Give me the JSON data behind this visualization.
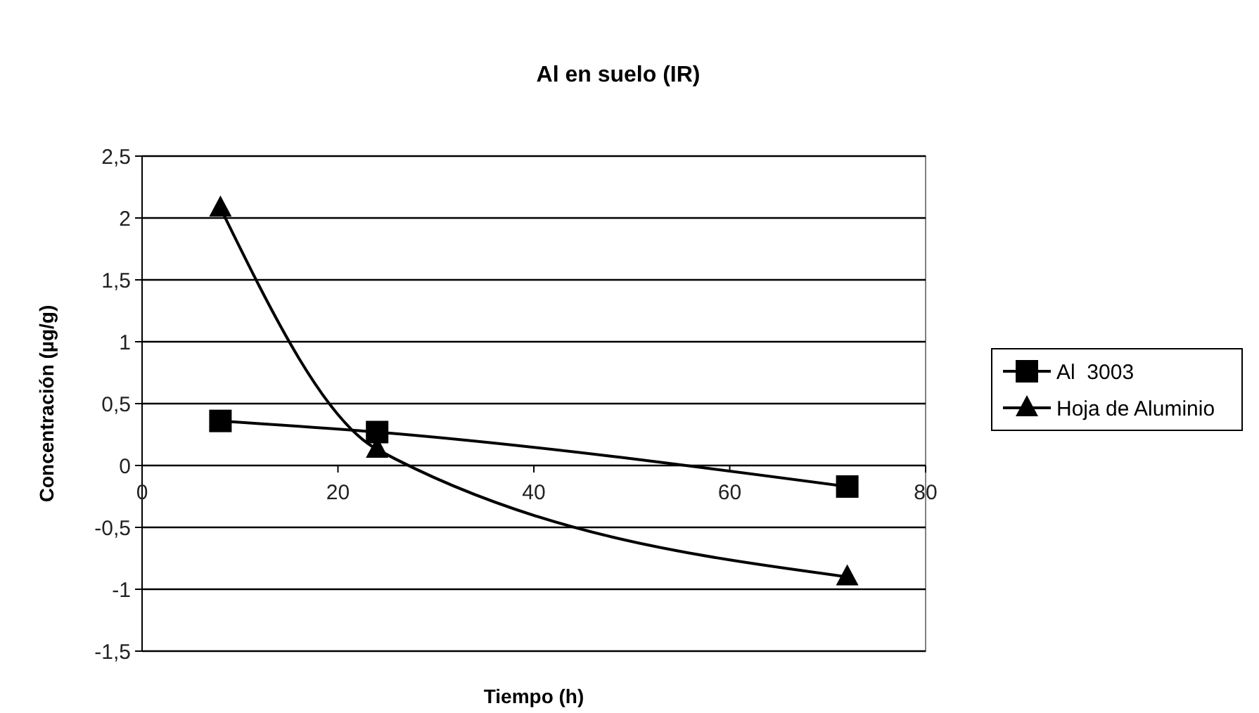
{
  "chart_data": {
    "type": "line",
    "title": "Al en suelo (IR)",
    "xlabel": "Tiempo (h)",
    "ylabel": "Concentración (µg/g)",
    "x": [
      8,
      24,
      72
    ],
    "series": [
      {
        "name": "Al  3003",
        "color": "#000000",
        "marker": "square",
        "values": [
          0.36,
          0.27,
          -0.17
        ]
      },
      {
        "name": "Hoja de Aluminio",
        "color": "#000000",
        "marker": "triangle",
        "values": [
          2.08,
          0.13,
          -0.9
        ]
      }
    ],
    "xlim": [
      0,
      80
    ],
    "xticks": [
      0,
      20,
      40,
      60,
      80
    ],
    "ylim": [
      -1.5,
      2.5
    ],
    "yticks": [
      {
        "value": -1.5,
        "label": "-1,5"
      },
      {
        "value": -1,
        "label": "-1"
      },
      {
        "value": -0.5,
        "label": "-0,5"
      },
      {
        "value": 0,
        "label": "0"
      },
      {
        "value": 0.5,
        "label": "0,5"
      },
      {
        "value": 1,
        "label": "1"
      },
      {
        "value": 1.5,
        "label": "1,5"
      },
      {
        "value": 2,
        "label": "2"
      },
      {
        "value": 2.5,
        "label": "2,5"
      }
    ],
    "grid": "y",
    "legend": "right",
    "line_style": "solid"
  }
}
